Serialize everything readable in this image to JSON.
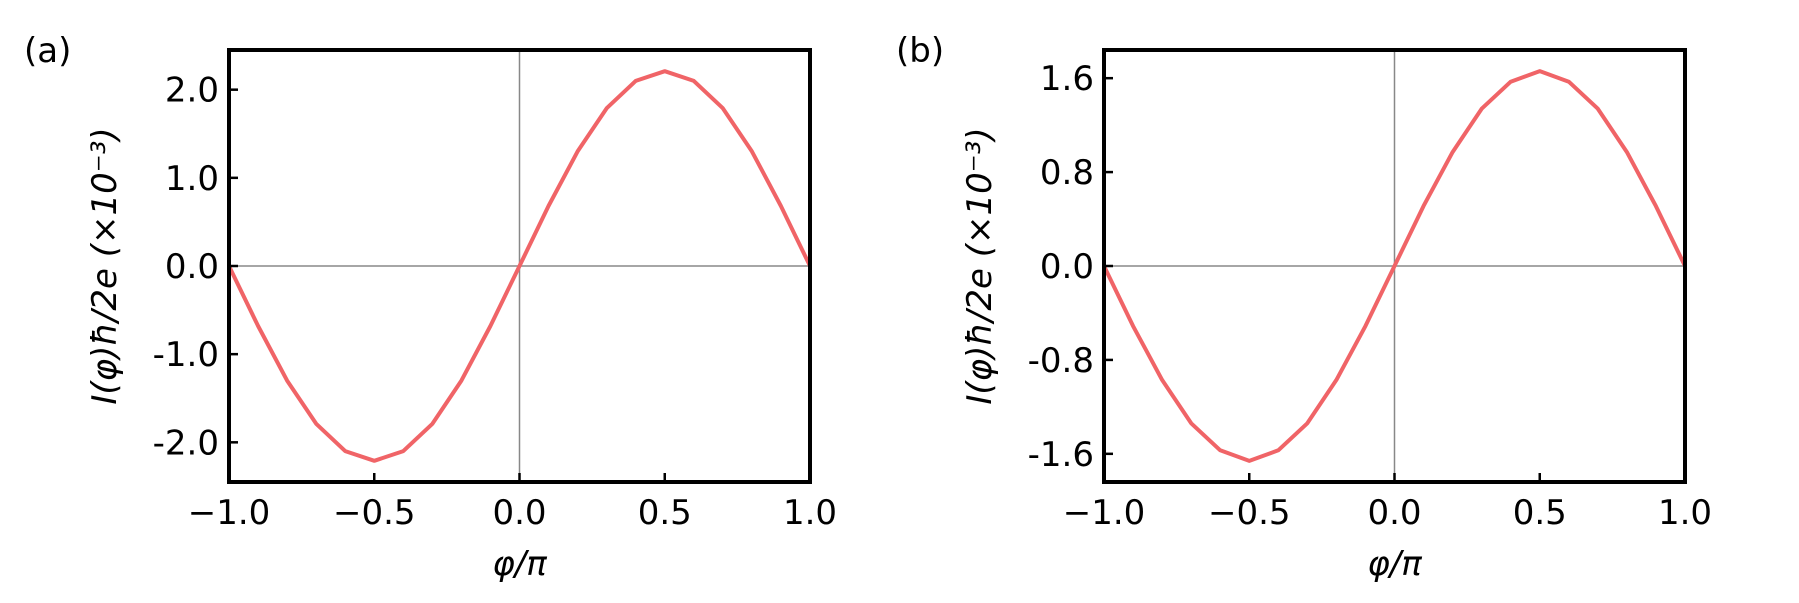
{
  "colors": {
    "curve": "#f06467",
    "frame": "#000000",
    "zero_line": "#888888"
  },
  "chart_data": [
    {
      "type": "line",
      "panel_label": "(a)",
      "xlabel": "φ/π",
      "ylabel": "I(φ)ħ/2e (×10⁻³)",
      "xlim": [
        -1.0,
        1.0
      ],
      "ylim": [
        -2.45,
        2.45
      ],
      "xticks": [
        -1.0,
        -0.5,
        0.0,
        0.5,
        1.0
      ],
      "xtick_labels": [
        "−1.0",
        "−0.5",
        "0.0",
        "0.5",
        "1.0"
      ],
      "yticks": [
        2.0,
        1.0,
        0.0,
        -1.0,
        -2.0
      ],
      "ytick_labels": [
        "2.0",
        "1.0",
        "0.0",
        "-1.0",
        "-2.0"
      ],
      "grid": false,
      "zero_lines": true,
      "series": [
        {
          "x": [
            -1.0,
            -0.9,
            -0.8,
            -0.7,
            -0.6,
            -0.5,
            -0.4,
            -0.3,
            -0.2,
            -0.1,
            0.0,
            0.1,
            0.2,
            0.3,
            0.4,
            0.5,
            0.6,
            0.7,
            0.8,
            0.9,
            1.0
          ],
          "y": [
            0.0,
            -0.68,
            -1.3,
            -1.79,
            -2.1,
            -2.21,
            -2.1,
            -1.79,
            -1.3,
            -0.68,
            0.0,
            0.68,
            1.3,
            1.79,
            2.1,
            2.21,
            2.1,
            1.79,
            1.3,
            0.68,
            0.0
          ]
        }
      ]
    },
    {
      "type": "line",
      "panel_label": "(b)",
      "xlabel": "φ/π",
      "ylabel": "I(φ)ħ/2e (×10⁻³)",
      "xlim": [
        -1.0,
        1.0
      ],
      "ylim": [
        -1.84,
        1.84
      ],
      "xticks": [
        -1.0,
        -0.5,
        0.0,
        0.5,
        1.0
      ],
      "xtick_labels": [
        "−1.0",
        "−0.5",
        "0.0",
        "0.5",
        "1.0"
      ],
      "yticks": [
        1.6,
        0.8,
        0.0,
        -0.8,
        -1.6
      ],
      "ytick_labels": [
        "1.6",
        "0.8",
        "0.0",
        "-0.8",
        "-1.6"
      ],
      "grid": false,
      "zero_lines": true,
      "series": [
        {
          "x": [
            -1.0,
            -0.9,
            -0.8,
            -0.7,
            -0.6,
            -0.5,
            -0.4,
            -0.3,
            -0.2,
            -0.1,
            0.0,
            0.1,
            0.2,
            0.3,
            0.4,
            0.5,
            0.6,
            0.7,
            0.8,
            0.9,
            1.0
          ],
          "y": [
            0.0,
            -0.51,
            -0.97,
            -1.34,
            -1.57,
            -1.66,
            -1.57,
            -1.34,
            -0.97,
            -0.51,
            0.0,
            0.51,
            0.97,
            1.34,
            1.57,
            1.66,
            1.57,
            1.34,
            0.97,
            0.51,
            0.0
          ]
        }
      ]
    }
  ]
}
